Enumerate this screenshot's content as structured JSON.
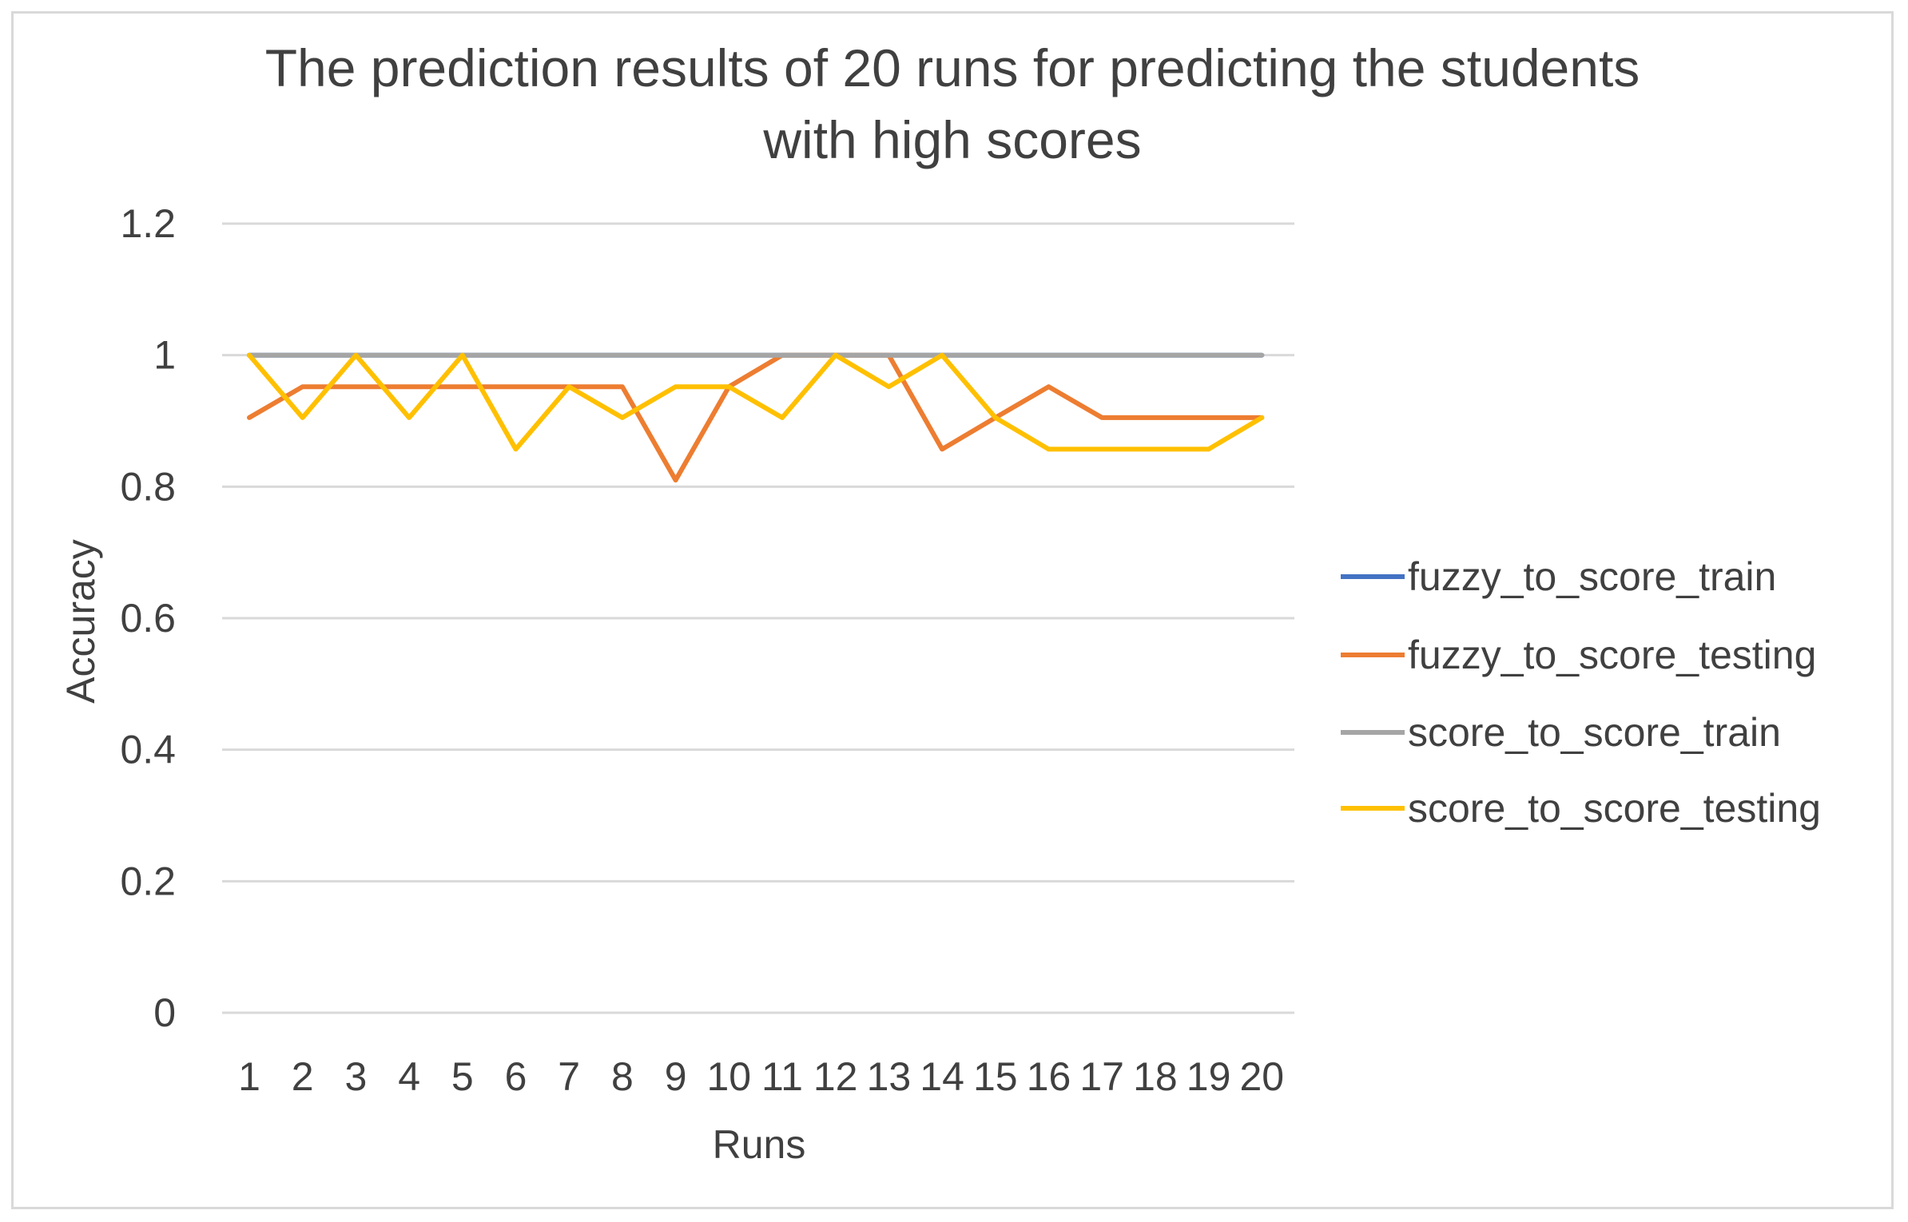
{
  "chart_data": {
    "type": "line",
    "title_lines": [
      "The prediction results of 20 runs for predicting the students",
      "with high scores"
    ],
    "xlabel": "Runs",
    "ylabel": "Accuracy",
    "x": [
      "1",
      "2",
      "3",
      "4",
      "5",
      "6",
      "7",
      "8",
      "9",
      "10",
      "11",
      "12",
      "13",
      "14",
      "15",
      "16",
      "17",
      "18",
      "19",
      "20"
    ],
    "ylim": [
      0,
      1.2
    ],
    "yticks": [
      "0",
      "0.2",
      "0.4",
      "0.6",
      "0.8",
      "1",
      "1.2"
    ],
    "grid": true,
    "legend_position": "right",
    "series": [
      {
        "name": "fuzzy_to_score_train",
        "color": "#4472C4",
        "values": [
          1,
          1,
          1,
          1,
          1,
          1,
          1,
          1,
          1,
          1,
          1,
          1,
          1,
          1,
          1,
          1,
          1,
          1,
          1,
          1
        ]
      },
      {
        "name": "fuzzy_to_score_testing",
        "color": "#ED7D31",
        "values": [
          0.905,
          0.952,
          0.952,
          0.952,
          0.952,
          0.952,
          0.952,
          0.952,
          0.81,
          0.952,
          1,
          1,
          1,
          0.857,
          0.905,
          0.952,
          0.905,
          0.905,
          0.905,
          0.905
        ]
      },
      {
        "name": "score_to_score_train",
        "color": "#A5A5A5",
        "values": [
          1,
          1,
          1,
          1,
          1,
          1,
          1,
          1,
          1,
          1,
          1,
          1,
          1,
          1,
          1,
          1,
          1,
          1,
          1,
          1
        ]
      },
      {
        "name": "score_to_score_testing",
        "color": "#FFC000",
        "values": [
          1,
          0.905,
          1,
          0.905,
          1,
          0.857,
          0.952,
          0.905,
          0.952,
          0.952,
          0.905,
          1,
          0.952,
          1,
          0.905,
          0.857,
          0.857,
          0.857,
          0.857,
          0.905
        ]
      }
    ]
  }
}
